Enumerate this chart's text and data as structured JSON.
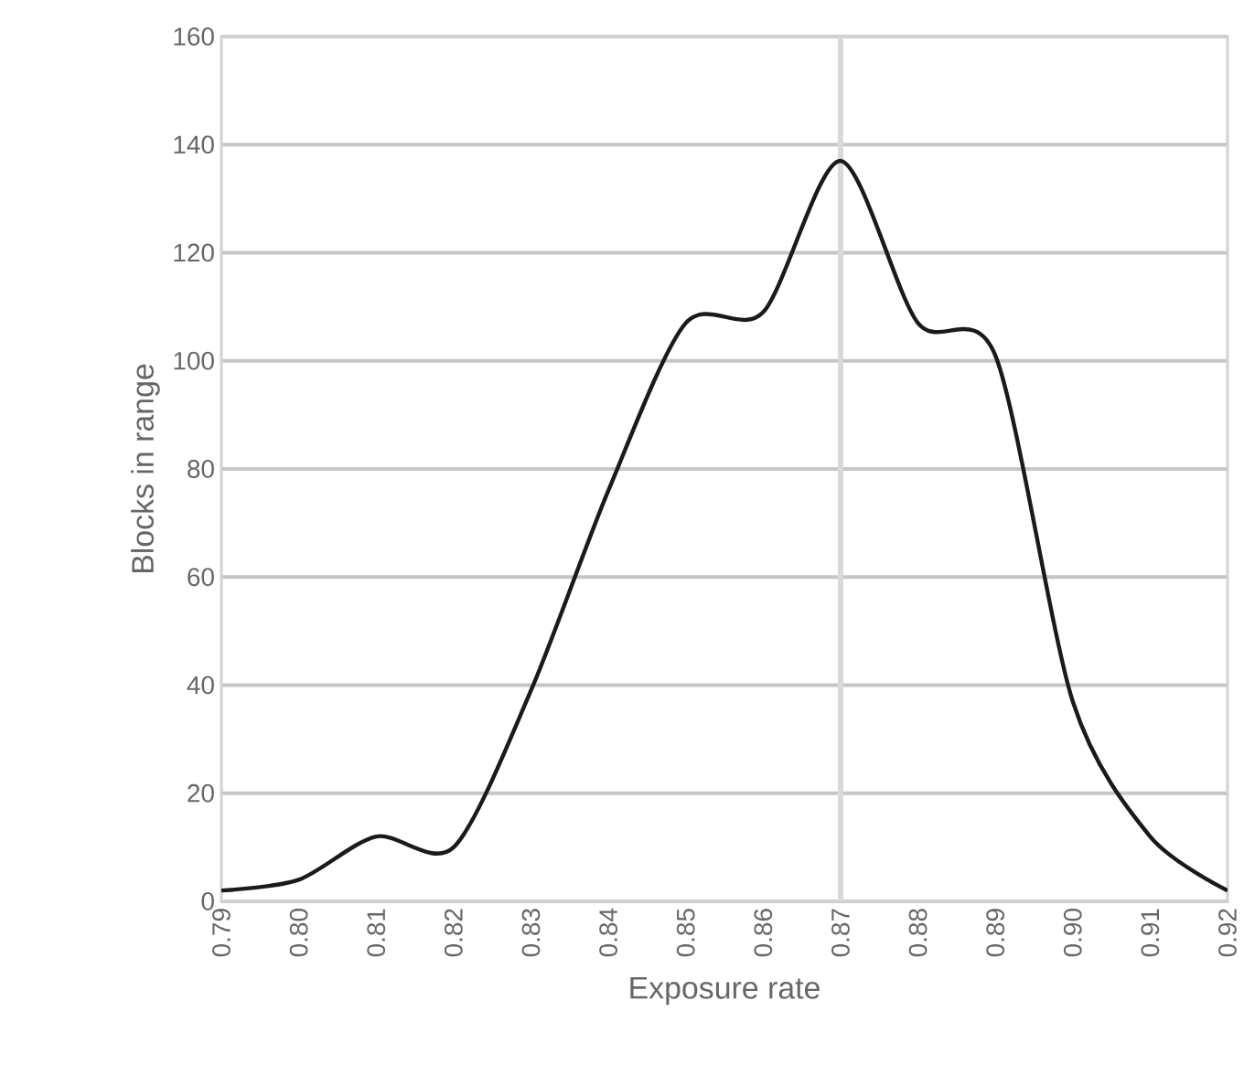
{
  "chart_data": {
    "type": "line",
    "xlabel": "Exposure rate",
    "ylabel": "Blocks in range",
    "x": [
      0.79,
      0.8,
      0.81,
      0.82,
      0.83,
      0.84,
      0.85,
      0.86,
      0.87,
      0.88,
      0.89,
      0.9,
      0.91,
      0.92
    ],
    "series": [
      {
        "color": "#1a1a1a",
        "values": [
          2,
          4,
          12,
          10,
          39,
          76,
          107,
          109,
          137,
          107,
          101,
          37,
          12,
          2
        ]
      }
    ],
    "xlim": [
      0.79,
      0.92
    ],
    "xticks": [
      {
        "value": 0.79,
        "label": "0.79"
      },
      {
        "value": 0.8,
        "label": "0.80"
      },
      {
        "value": 0.81,
        "label": "0.81"
      },
      {
        "value": 0.82,
        "label": "0.82"
      },
      {
        "value": 0.83,
        "label": "0.83"
      },
      {
        "value": 0.84,
        "label": "0.84"
      },
      {
        "value": 0.85,
        "label": "0.85"
      },
      {
        "value": 0.86,
        "label": "0.86"
      },
      {
        "value": 0.87,
        "label": "0.87"
      },
      {
        "value": 0.88,
        "label": "0.88"
      },
      {
        "value": 0.89,
        "label": "0.89"
      },
      {
        "value": 0.9,
        "label": "0.90"
      },
      {
        "value": 0.91,
        "label": "0.91"
      },
      {
        "value": 0.92,
        "label": "0.92"
      }
    ],
    "ylim": [
      0,
      160
    ],
    "yticks": [
      0,
      20,
      40,
      60,
      80,
      100,
      120,
      140,
      160
    ],
    "grid": "y",
    "marker": "none",
    "line_style": "solid",
    "ref_lines": [
      {
        "axis": "x",
        "value": 0.87,
        "color": "#d9d9d9"
      }
    ]
  }
}
